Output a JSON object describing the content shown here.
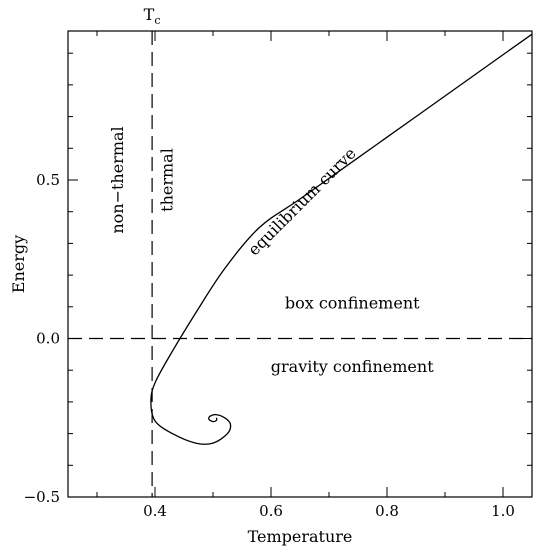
{
  "chart_data": {
    "type": "line",
    "xlabel": "Temperature",
    "ylabel": "Energy",
    "xlim": [
      0.25,
      1.05
    ],
    "ylim": [
      -0.5,
      0.97
    ],
    "x_ticks": [
      0.4,
      0.6,
      0.8,
      1.0
    ],
    "x_tick_labels": [
      "0.4",
      "0.6",
      "0.8",
      "1.0"
    ],
    "y_ticks": [
      -0.5,
      0.0,
      0.5
    ],
    "y_tick_labels": [
      "−0.5",
      "0.0",
      "0.5"
    ],
    "critical_temperature": {
      "label": "T",
      "subscript": "c",
      "x": 0.395
    },
    "reference_line_y": 0.0,
    "series": [
      {
        "points": [
          [
            1.05,
            0.96
          ],
          [
            0.95,
            0.83
          ],
          [
            0.85,
            0.7
          ],
          [
            0.75,
            0.57
          ],
          [
            0.65,
            0.44
          ],
          [
            0.58,
            0.35
          ],
          [
            0.52,
            0.22
          ],
          [
            0.47,
            0.08
          ],
          [
            0.43,
            -0.04
          ],
          [
            0.4,
            -0.14
          ],
          [
            0.393,
            -0.2
          ],
          [
            0.4,
            -0.26
          ],
          [
            0.43,
            -0.3
          ],
          [
            0.47,
            -0.33
          ],
          [
            0.5,
            -0.33
          ],
          [
            0.525,
            -0.3
          ],
          [
            0.53,
            -0.27
          ],
          [
            0.52,
            -0.25
          ],
          [
            0.505,
            -0.24
          ],
          [
            0.495,
            -0.245
          ],
          [
            0.493,
            -0.255
          ],
          [
            0.5,
            -0.262
          ],
          [
            0.506,
            -0.258
          ],
          [
            0.506,
            -0.25
          ]
        ]
      }
    ],
    "annotations": [
      {
        "text": "equilibrium curve",
        "x": 0.66,
        "y": 0.42,
        "angle": -45
      },
      {
        "text": "box confinement",
        "x": 0.74,
        "y": 0.095,
        "angle": 0
      },
      {
        "text": "gravity confinement",
        "x": 0.74,
        "y": -0.105,
        "angle": 0
      },
      {
        "text": "non−thermal",
        "x": 0.345,
        "y": 0.5,
        "angle": -90
      },
      {
        "text": "thermal",
        "x": 0.43,
        "y": 0.5,
        "angle": -90
      }
    ]
  }
}
